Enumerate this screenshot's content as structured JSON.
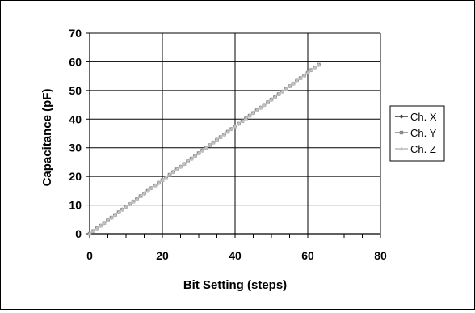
{
  "chart_data": {
    "type": "line",
    "xlabel": "Bit Setting (steps)",
    "ylabel": "Capacitance (pF)",
    "xlim": [
      0,
      80
    ],
    "ylim": [
      0,
      70
    ],
    "x_ticks": [
      "0",
      "20",
      "40",
      "60",
      "80"
    ],
    "y_ticks": [
      "0",
      "10",
      "20",
      "30",
      "40",
      "50",
      "60",
      "70"
    ],
    "grid": true,
    "legend_position": "right",
    "x": [
      0,
      1,
      2,
      3,
      4,
      5,
      6,
      7,
      8,
      9,
      10,
      11,
      12,
      13,
      14,
      15,
      16,
      17,
      18,
      19,
      20,
      21,
      22,
      23,
      24,
      25,
      26,
      27,
      28,
      29,
      30,
      31,
      32,
      33,
      34,
      35,
      36,
      37,
      38,
      39,
      40,
      41,
      42,
      43,
      44,
      45,
      46,
      47,
      48,
      49,
      50,
      51,
      52,
      53,
      54,
      55,
      56,
      57,
      58,
      59,
      60,
      61,
      62,
      63
    ],
    "series": [
      {
        "name": "Ch. X",
        "color": "#404040",
        "marker": "diamond",
        "values": [
          0.0,
          0.94,
          1.87,
          2.81,
          3.75,
          4.68,
          5.62,
          6.56,
          7.49,
          8.43,
          9.37,
          10.3,
          11.24,
          12.17,
          13.11,
          14.05,
          14.98,
          15.92,
          16.86,
          17.79,
          18.73,
          19.67,
          20.6,
          21.54,
          22.48,
          23.41,
          24.35,
          25.29,
          26.22,
          27.16,
          28.1,
          29.03,
          29.97,
          30.9,
          31.84,
          32.78,
          33.71,
          34.65,
          35.59,
          36.52,
          37.46,
          38.4,
          39.33,
          40.27,
          41.21,
          42.14,
          43.08,
          44.02,
          44.95,
          45.89,
          46.83,
          47.76,
          48.7,
          49.63,
          50.57,
          51.51,
          52.44,
          53.38,
          54.32,
          55.25,
          56.19,
          57.13,
          58.06,
          59.0
        ]
      },
      {
        "name": "Ch. Y",
        "color": "#8a8a8a",
        "marker": "square",
        "values": [
          0.0,
          0.94,
          1.87,
          2.81,
          3.75,
          4.68,
          5.62,
          6.56,
          7.49,
          8.43,
          9.37,
          10.3,
          11.24,
          12.17,
          13.11,
          14.05,
          14.98,
          15.92,
          16.86,
          17.79,
          18.73,
          19.67,
          20.6,
          21.54,
          22.48,
          23.41,
          24.35,
          25.29,
          26.22,
          27.16,
          28.1,
          29.03,
          29.97,
          30.9,
          31.84,
          32.78,
          33.71,
          34.65,
          35.59,
          36.52,
          37.46,
          38.4,
          39.33,
          40.27,
          41.21,
          42.14,
          43.08,
          44.02,
          44.95,
          45.89,
          46.83,
          47.76,
          48.7,
          49.63,
          50.57,
          51.51,
          52.44,
          53.38,
          54.32,
          55.25,
          56.19,
          57.13,
          58.06,
          59.0
        ]
      },
      {
        "name": "Ch. Z",
        "color": "#c0c0c0",
        "marker": "triangle",
        "values": [
          0.0,
          0.94,
          1.87,
          2.81,
          3.75,
          4.68,
          5.62,
          6.56,
          7.49,
          8.43,
          9.37,
          10.3,
          11.24,
          12.17,
          13.11,
          14.05,
          14.98,
          15.92,
          16.86,
          17.79,
          18.73,
          19.67,
          20.6,
          21.54,
          22.48,
          23.41,
          24.35,
          25.29,
          26.22,
          27.16,
          28.1,
          29.03,
          29.97,
          30.9,
          31.84,
          32.78,
          33.71,
          34.65,
          35.59,
          36.52,
          37.46,
          38.4,
          39.33,
          40.27,
          41.21,
          42.14,
          43.08,
          44.02,
          44.95,
          45.89,
          46.83,
          47.76,
          48.7,
          49.63,
          50.57,
          51.51,
          52.44,
          53.38,
          54.32,
          55.25,
          56.19,
          57.13,
          58.06,
          59.0
        ]
      }
    ]
  }
}
